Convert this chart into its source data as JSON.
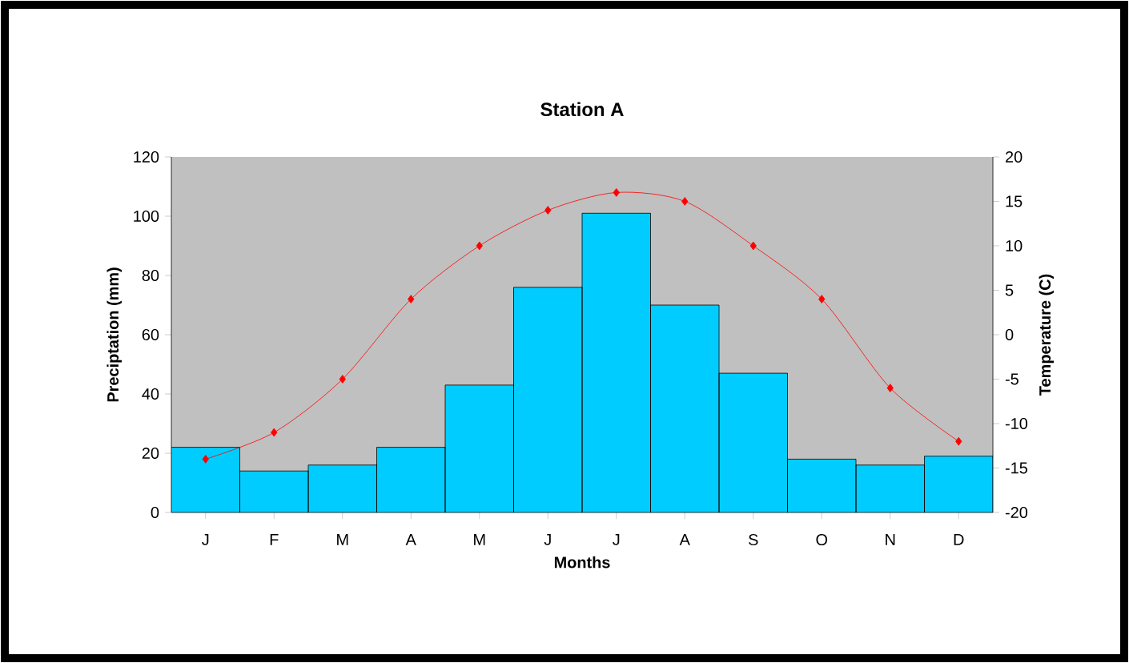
{
  "chart_data": {
    "type": "bar",
    "title": "Station A",
    "xlabel": "Months",
    "ylabel": "Preciptation (mm)",
    "y2label": "Temperature (C)",
    "categories": [
      "J",
      "F",
      "M",
      "A",
      "M",
      "J",
      "J",
      "A",
      "S",
      "O",
      "N",
      "D"
    ],
    "series": [
      {
        "color": "#00ccff",
        "values": [
          22,
          14,
          16,
          22,
          43,
          76,
          101,
          70,
          47,
          18,
          16,
          19
        ]
      },
      {
        "type": "line",
        "axis": "y2",
        "color": "#ff0000",
        "marker": "diamond",
        "values": [
          -14,
          -11,
          -5,
          4,
          10,
          14,
          16,
          15,
          10,
          4,
          -6,
          -12
        ]
      }
    ],
    "ylim": [
      0,
      120
    ],
    "yticks": [
      0,
      20,
      40,
      60,
      80,
      100,
      120
    ],
    "y2lim": [
      -20,
      20
    ],
    "y2ticks": [
      -20,
      -15,
      -10,
      -5,
      0,
      5,
      10,
      15,
      20
    ],
    "grid": false
  }
}
